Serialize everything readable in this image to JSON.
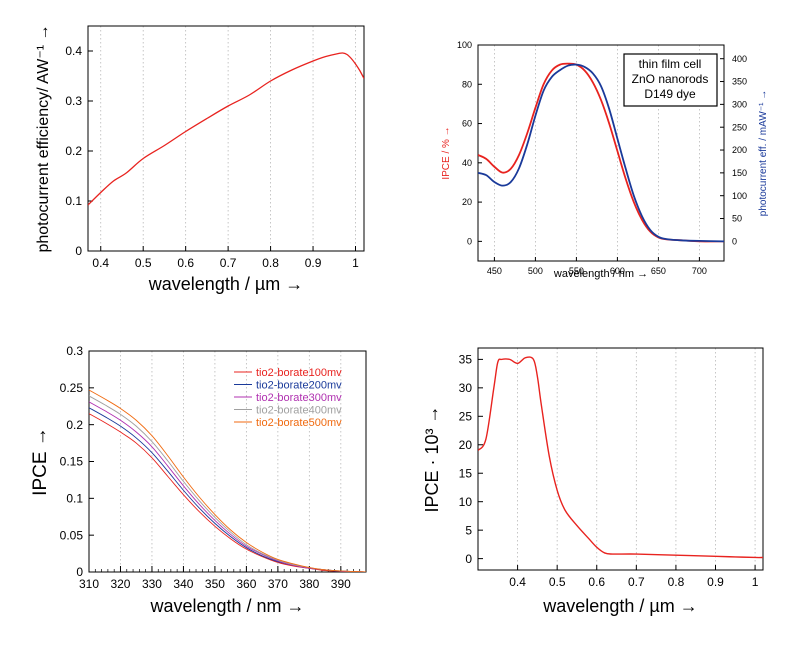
{
  "chart_data": [
    {
      "type": "line",
      "xlabel": "wavelength / µm →",
      "ylabel": "photocurrent efficiency/ AW⁻¹ →",
      "xlim": [
        0.37,
        1.02
      ],
      "ylim": [
        0,
        0.45
      ],
      "xticks": [
        "0.4",
        "0.5",
        "0.6",
        "0.7",
        "0.8",
        "0.9",
        "1"
      ],
      "yticks": [
        "0",
        "0.1",
        "0.2",
        "0.3",
        "0.4"
      ],
      "grid": "vertical dotted",
      "line_color": "#e8231f",
      "series": [
        {
          "x": [
            0.37,
            0.4,
            0.43,
            0.46,
            0.5,
            0.55,
            0.6,
            0.65,
            0.7,
            0.75,
            0.8,
            0.85,
            0.9,
            0.93,
            0.96,
            0.97,
            0.98,
            0.99,
            1.0,
            1.01,
            1.02
          ],
          "y": [
            0.092,
            0.117,
            0.14,
            0.156,
            0.185,
            0.211,
            0.239,
            0.265,
            0.29,
            0.312,
            0.34,
            0.362,
            0.38,
            0.389,
            0.395,
            0.396,
            0.393,
            0.385,
            0.374,
            0.361,
            0.345
          ]
        }
      ]
    },
    {
      "type": "line",
      "title_lines": [
        "thin film cell",
        "ZnO nanorods",
        "D149 dye"
      ],
      "xlabel": "wavelength / nm →",
      "ylabel_left": "IPCE / % →",
      "ylabel_right": "photocurrent eff. / mAW⁻¹ →",
      "xlim": [
        430,
        730
      ],
      "ylim_left": [
        -10,
        100
      ],
      "ylim_right": [
        -43,
        430
      ],
      "xticks": [
        "450",
        "500",
        "550",
        "600",
        "650",
        "700"
      ],
      "yticks_left": [
        "0",
        "20",
        "40",
        "60",
        "80",
        "100"
      ],
      "yticks_right": [
        "0",
        "50",
        "100",
        "150",
        "200",
        "250",
        "300",
        "350",
        "400"
      ],
      "left_color": "#e8231f",
      "right_color": "#1a3a9a",
      "series": [
        {
          "axis": "left",
          "color": "#e8231f",
          "x": [
            430,
            440,
            450,
            460,
            470,
            480,
            490,
            500,
            510,
            520,
            530,
            540,
            550,
            560,
            570,
            580,
            590,
            600,
            610,
            620,
            630,
            640,
            650,
            660,
            680,
            700,
            730
          ],
          "y": [
            44,
            42,
            38,
            35,
            37,
            44,
            55,
            68,
            80,
            87,
            90,
            90.5,
            90,
            87,
            81,
            72,
            60,
            46,
            32,
            20,
            11,
            5,
            2,
            1,
            0.5,
            0,
            0
          ]
        },
        {
          "axis": "right",
          "color": "#1a3a9a",
          "x": [
            430,
            440,
            450,
            460,
            470,
            480,
            490,
            500,
            510,
            520,
            530,
            540,
            550,
            560,
            570,
            580,
            590,
            600,
            610,
            620,
            630,
            640,
            650,
            660,
            680,
            700,
            730
          ],
          "y": [
            150,
            145,
            130,
            122,
            130,
            160,
            212,
            275,
            330,
            360,
            375,
            385,
            387,
            382,
            368,
            340,
            290,
            225,
            160,
            100,
            55,
            25,
            10,
            5,
            2,
            1,
            0
          ]
        }
      ]
    },
    {
      "type": "line",
      "xlabel": "wavelength / nm →",
      "ylabel": "IPCE →",
      "xlim": [
        310,
        398
      ],
      "ylim": [
        0,
        0.3
      ],
      "xticks": [
        "310",
        "320",
        "330",
        "340",
        "350",
        "360",
        "370",
        "380",
        "390"
      ],
      "yticks": [
        "0",
        "0.05",
        "0.1",
        "0.15",
        "0.2",
        "0.25",
        "0.3"
      ],
      "legend": "top-right",
      "x": [
        310,
        315,
        320,
        325,
        330,
        335,
        340,
        345,
        350,
        355,
        360,
        365,
        370,
        375,
        380,
        385,
        390,
        395,
        398
      ],
      "series": [
        {
          "name": "tio2-borate100mv",
          "color": "#e8231f",
          "values": [
            0.215,
            0.203,
            0.19,
            0.175,
            0.155,
            0.13,
            0.105,
            0.082,
            0.062,
            0.045,
            0.031,
            0.021,
            0.013,
            0.008,
            0.005,
            0.002,
            0.001,
            0.0005,
            0
          ]
        },
        {
          "name": "tio2-borate200mv",
          "color": "#1a3a9a",
          "values": [
            0.223,
            0.211,
            0.198,
            0.182,
            0.162,
            0.137,
            0.111,
            0.087,
            0.066,
            0.048,
            0.033,
            0.022,
            0.014,
            0.009,
            0.005,
            0.003,
            0.001,
            0.0005,
            0
          ]
        },
        {
          "name": "tio2-borate300mv",
          "color": "#b030b0",
          "values": [
            0.231,
            0.219,
            0.206,
            0.19,
            0.17,
            0.144,
            0.117,
            0.092,
            0.07,
            0.051,
            0.035,
            0.024,
            0.015,
            0.009,
            0.005,
            0.003,
            0.001,
            0.0005,
            0
          ]
        },
        {
          "name": "tio2-borate400mv",
          "color": "#a0a0a0",
          "values": [
            0.239,
            0.227,
            0.214,
            0.198,
            0.177,
            0.151,
            0.123,
            0.097,
            0.074,
            0.054,
            0.037,
            0.025,
            0.016,
            0.01,
            0.006,
            0.003,
            0.0015,
            0.0005,
            0
          ]
        },
        {
          "name": "tio2-borate500mv",
          "color": "#f06a10",
          "values": [
            0.247,
            0.235,
            0.222,
            0.206,
            0.185,
            0.158,
            0.129,
            0.102,
            0.078,
            0.057,
            0.04,
            0.027,
            0.017,
            0.011,
            0.006,
            0.003,
            0.0015,
            0.0005,
            0
          ]
        }
      ]
    },
    {
      "type": "line",
      "xlabel": "wavelength / µm →",
      "ylabel": "IPCE · 10³ →",
      "xlim": [
        0.3,
        1.02
      ],
      "ylim": [
        -2,
        37
      ],
      "xticks": [
        "0.4",
        "0.5",
        "0.6",
        "0.7",
        "0.8",
        "0.9",
        "1"
      ],
      "yticks": [
        "0",
        "5",
        "10",
        "15",
        "20",
        "25",
        "30",
        "35"
      ],
      "grid": "vertical dotted",
      "line_color": "#e8231f",
      "series": [
        {
          "x": [
            0.3,
            0.32,
            0.34,
            0.35,
            0.36,
            0.38,
            0.4,
            0.42,
            0.44,
            0.45,
            0.46,
            0.48,
            0.5,
            0.52,
            0.55,
            0.58,
            0.6,
            0.62,
            0.64,
            0.7,
            0.8,
            0.9,
            0.95,
            1.0,
            1.02
          ],
          "y": [
            19,
            21,
            30,
            34.5,
            35,
            35,
            34.3,
            35.3,
            35,
            32,
            27,
            18,
            12,
            8.5,
            5.8,
            3.5,
            2,
            1,
            0.8,
            0.8,
            0.6,
            0.4,
            0.3,
            0.2,
            0.2
          ]
        }
      ]
    }
  ]
}
